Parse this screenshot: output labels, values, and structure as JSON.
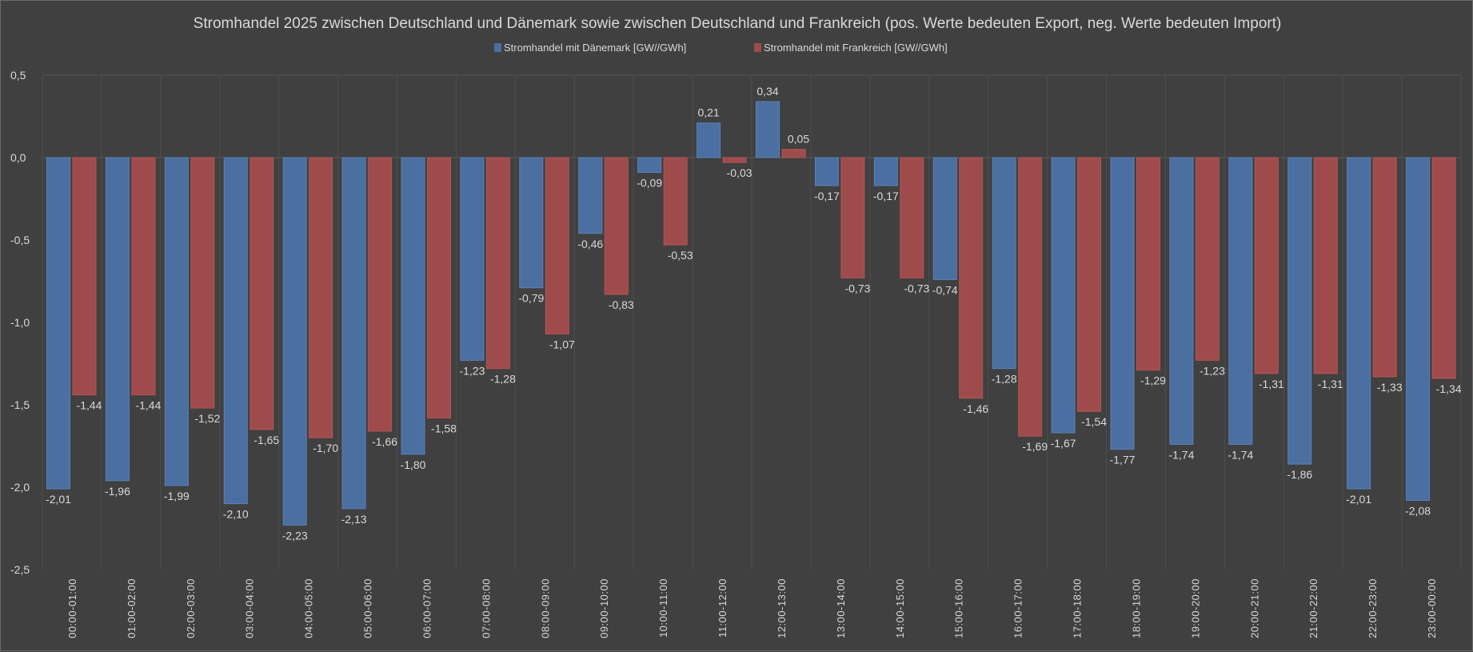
{
  "chart_data": {
    "type": "bar",
    "title": "Stromhandel 2025 zwischen Deutschland und Dänemark sowie zwischen Deutschland und Frankreich (pos. Werte bedeuten Export, neg. Werte bedeuten Import)",
    "xlabel": "",
    "ylabel": "",
    "ylim": [
      -2.5,
      0.5
    ],
    "yticks": [
      "0,5",
      "0,0",
      "-0,5",
      "-1,0",
      "-1,5",
      "-2,0",
      "-2,5"
    ],
    "grid": "vertical",
    "legend": "top",
    "categories": [
      "00:00-01:00",
      "01:00-02:00",
      "02:00-03:00",
      "03:00-04:00",
      "04:00-05:00",
      "05:00-06:00",
      "06:00-07:00",
      "07:00-08:00",
      "08:00-09:00",
      "09:00-10:00",
      "10:00-11:00",
      "11:00-12:00",
      "12:00-13:00",
      "13:00-14:00",
      "14:00-15:00",
      "15:00-16:00",
      "16:00-17:00",
      "17:00-18:00",
      "18:00-19:00",
      "19:00-20:00",
      "20:00-21:00",
      "21:00-22:00",
      "22:00-23:00",
      "23:00-00:00"
    ],
    "series": [
      {
        "name": "Stromhandel mit Dänemark [GW//GWh]",
        "color": "#4a6fa0",
        "values": [
          -2.01,
          -1.96,
          -1.99,
          -2.1,
          -2.23,
          -2.13,
          -1.8,
          -1.23,
          -0.79,
          -0.46,
          -0.09,
          0.21,
          0.34,
          -0.17,
          -0.17,
          -0.74,
          -1.28,
          -1.67,
          -1.77,
          -1.74,
          -1.74,
          -1.86,
          -2.01,
          -2.08
        ]
      },
      {
        "name": "Stromhandel mit Frankreich [GW//GWh]",
        "color": "#a04b4b",
        "values": [
          -1.44,
          -1.44,
          -1.52,
          -1.65,
          -1.7,
          -1.66,
          -1.58,
          -1.28,
          -1.07,
          -0.83,
          -0.53,
          -0.03,
          0.05,
          -0.73,
          -0.73,
          -1.46,
          -1.69,
          -1.54,
          -1.29,
          -1.23,
          -1.31,
          -1.31,
          -1.33,
          -1.34
        ]
      }
    ]
  }
}
